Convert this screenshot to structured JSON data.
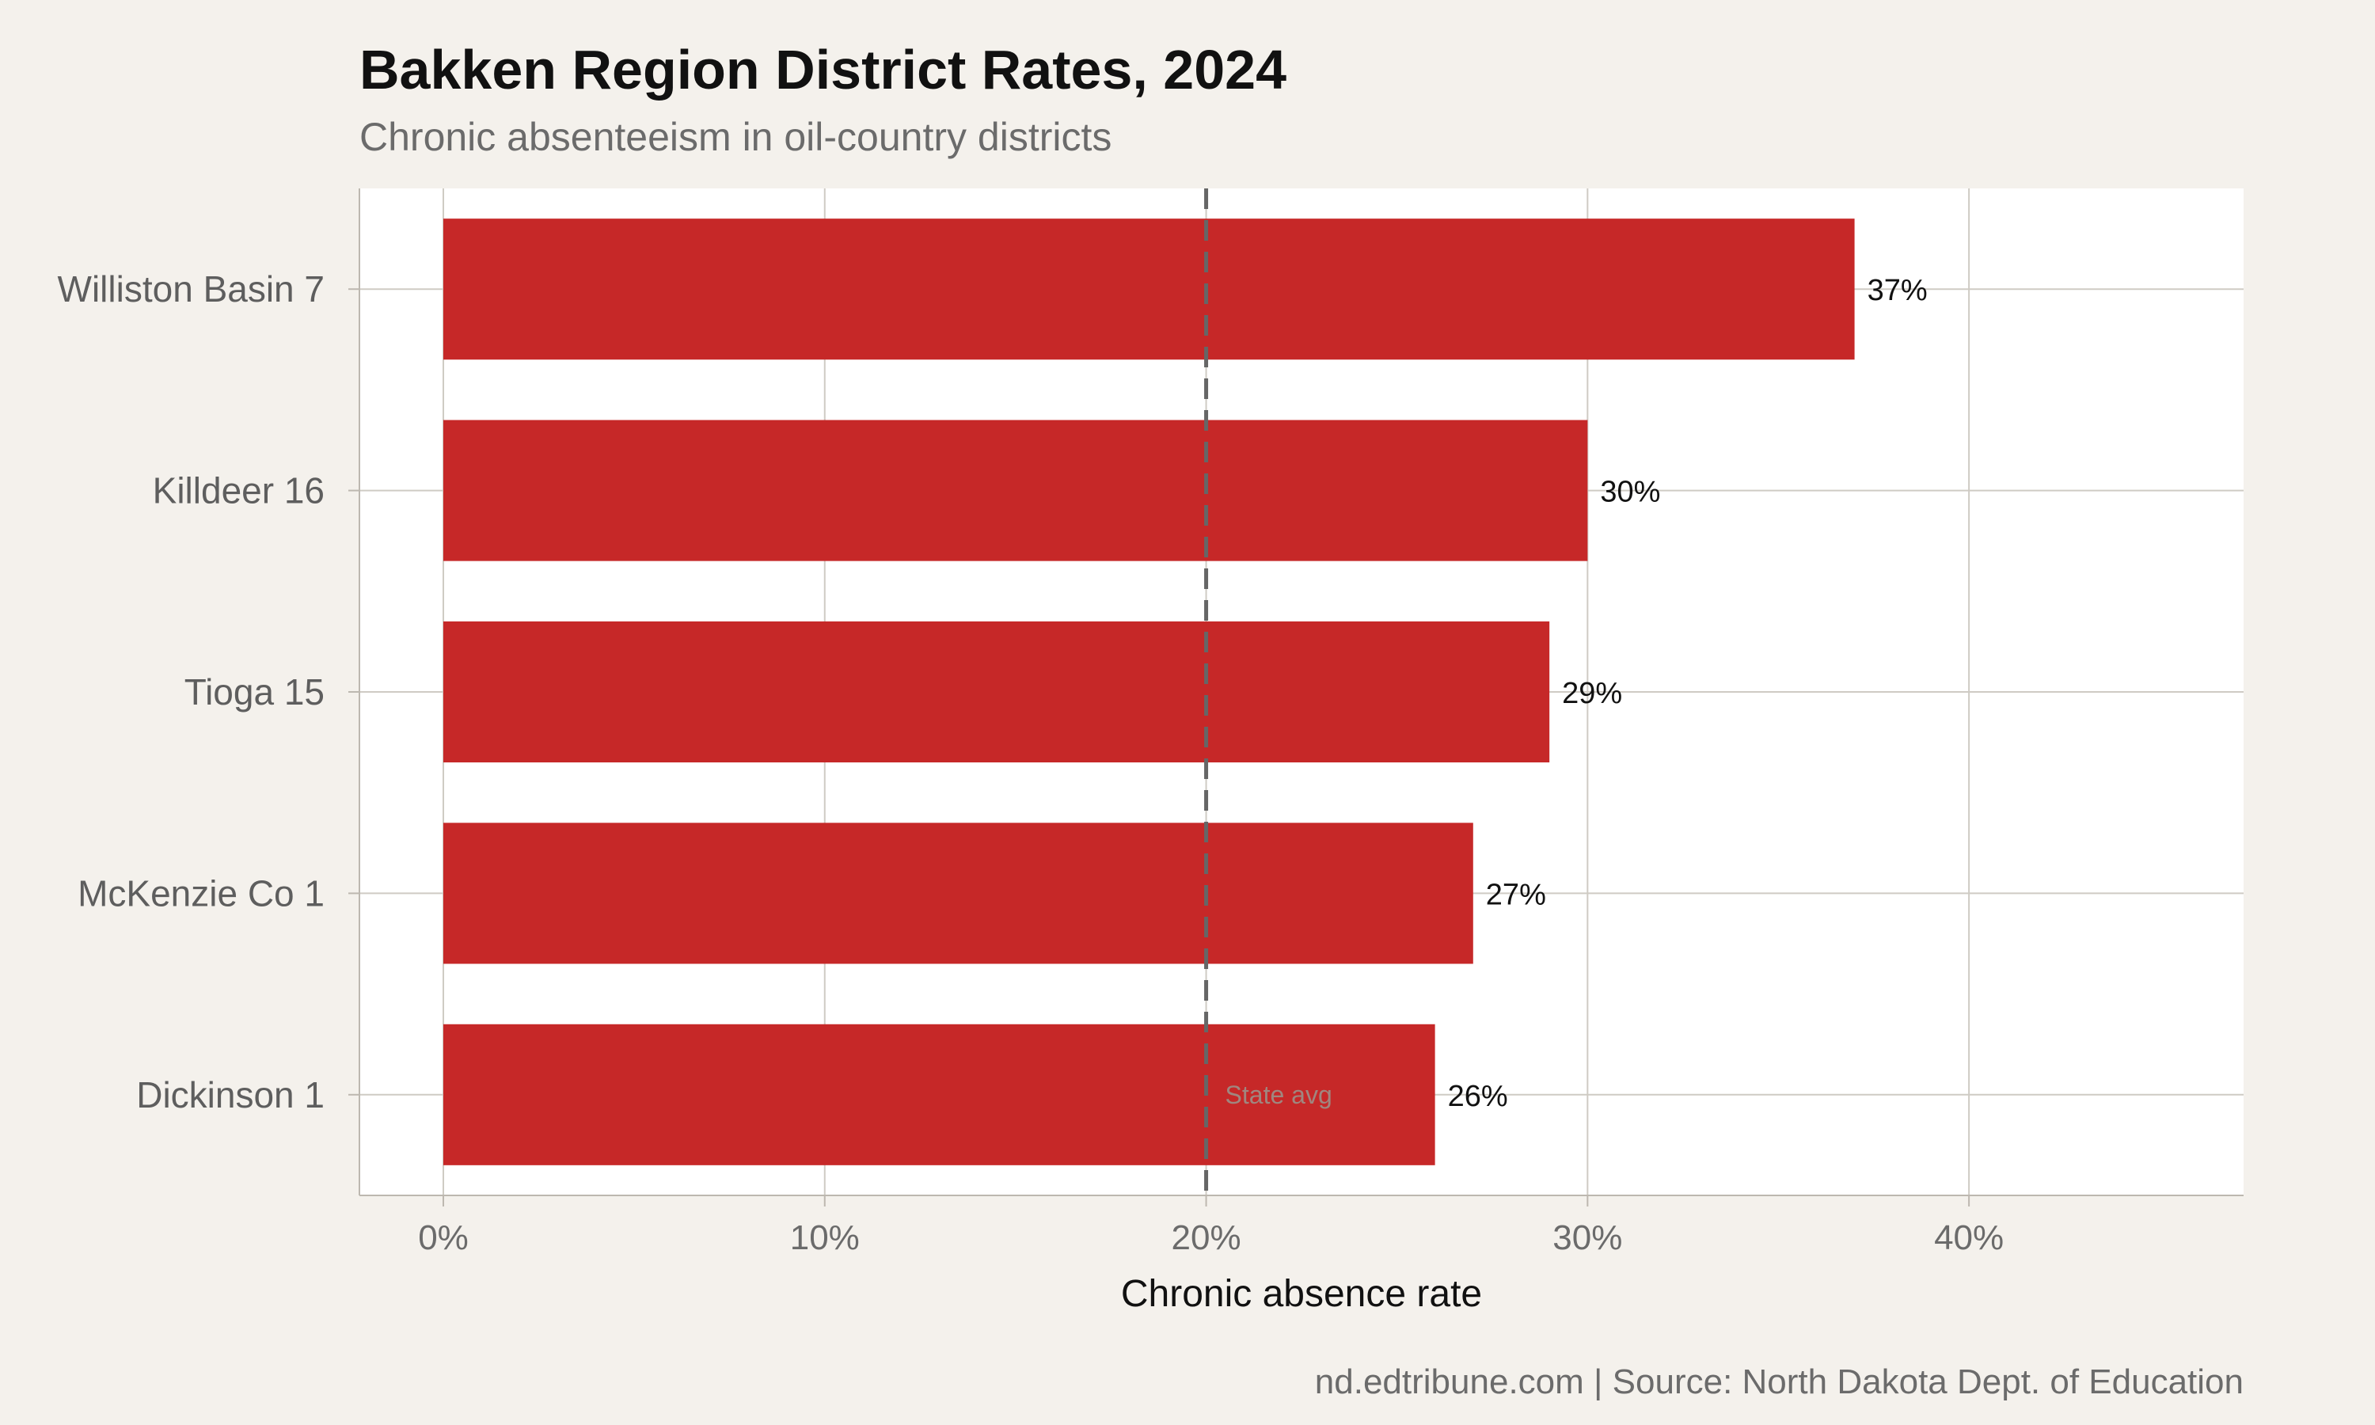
{
  "chart_data": {
    "type": "bar",
    "orientation": "horizontal",
    "title": "Bakken Region District Rates, 2024",
    "subtitle": "Chronic absenteeism in oil-country districts",
    "xlabel": "Chronic absence rate",
    "ylabel": "",
    "categories": [
      "Williston Basin 7",
      "Killdeer 16",
      "Tioga 15",
      "McKenzie Co 1",
      "Dickinson 1"
    ],
    "values": [
      37,
      30,
      29,
      27,
      26
    ],
    "value_labels": [
      "37%",
      "30%",
      "29%",
      "27%",
      "26%"
    ],
    "xlim": [
      -2.2,
      47.2
    ],
    "x_ticks": [
      0,
      10,
      20,
      30,
      40
    ],
    "x_tick_labels": [
      "0%",
      "10%",
      "20%",
      "30%",
      "40%"
    ],
    "reference_line": {
      "value": 20,
      "label": "State avg",
      "style": "dashed"
    },
    "bar_color": "#c62828",
    "reference_color": "#666666",
    "grid": true,
    "legend": "none",
    "source": "nd.edtribune.com | Source: North Dakota Dept. of Education"
  }
}
